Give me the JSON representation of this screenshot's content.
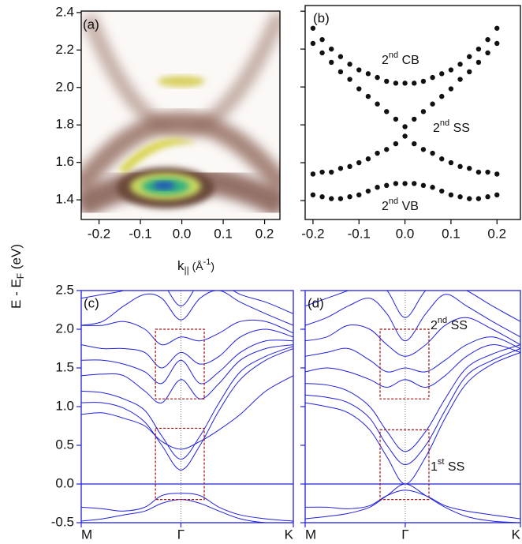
{
  "chart_data": [
    {
      "type": "image",
      "panel_label": "(a)",
      "frame_color": "#000000",
      "xlim": [
        -0.243,
        0.237
      ],
      "xticks": [
        -0.2,
        -0.1,
        {
          "value": 0,
          "label": "0.0"
        },
        0.1,
        0.2
      ],
      "ylim": [
        1.295,
        2.408
      ],
      "yticks": [
        1.4,
        1.6,
        1.8,
        {
          "value": 2,
          "label": "2.0"
        },
        2.2,
        2.4
      ]
    },
    {
      "type": "scatter",
      "panel_label": "(b)",
      "frame_color": "#000000",
      "ytick_labels": false,
      "xlim": [
        -0.217,
        0.251
      ],
      "xticks": [
        -0.2,
        -0.1,
        {
          "value": 0,
          "label": "0.0"
        },
        0.1,
        0.2
      ],
      "ylim": [
        1.3,
        2.43
      ],
      "yticks": [
        1.4,
        1.6,
        1.8,
        2,
        2.2,
        2.4
      ],
      "x": [
        -0.2,
        -0.18,
        -0.16,
        -0.14,
        -0.12,
        -0.1,
        -0.08,
        -0.06,
        -0.04,
        -0.02,
        0,
        0.02,
        0.04,
        0.06,
        0.08,
        0.1,
        0.12,
        0.14,
        0.16,
        0.18,
        0.2
      ],
      "series": [
        {
          "color": "#111111",
          "values": [
            2.31,
            2.25,
            2.2,
            2.16,
            2.12,
            2.09,
            2.07,
            2.05,
            2.03,
            2.02,
            2.02,
            2.02,
            2.03,
            2.05,
            2.07,
            2.09,
            2.12,
            2.16,
            2.2,
            2.25,
            2.31
          ]
        },
        {
          "color": "#111111",
          "values": [
            2.23,
            2.18,
            2.13,
            2.08,
            2.04,
            1.99,
            1.95,
            1.91,
            1.87,
            1.83,
            1.79,
            1.83,
            1.87,
            1.91,
            1.95,
            1.99,
            2.04,
            2.08,
            2.13,
            2.18,
            2.23
          ]
        },
        {
          "color": "#111111",
          "values": [
            1.54,
            1.55,
            1.55,
            1.57,
            1.58,
            1.6,
            1.62,
            1.65,
            1.67,
            1.7,
            1.74,
            1.7,
            1.67,
            1.65,
            1.62,
            1.6,
            1.58,
            1.57,
            1.55,
            1.55,
            1.54
          ]
        },
        {
          "color": "#111111",
          "values": [
            1.43,
            1.42,
            1.41,
            1.41,
            1.42,
            1.43,
            1.45,
            1.47,
            1.48,
            1.49,
            1.49,
            1.49,
            1.48,
            1.47,
            1.45,
            1.43,
            1.42,
            1.41,
            1.41,
            1.42,
            1.43
          ]
        }
      ],
      "annotations": [
        {
          "base": "2",
          "sup": "nd",
          "rest": " CB"
        },
        {
          "base": "2",
          "sup": "nd",
          "rest": " SS"
        },
        {
          "base": "2",
          "sup": "nd",
          "rest": " VB"
        }
      ]
    },
    {
      "type": "line",
      "panel_label": "(c)",
      "frame_color": "#2020dd",
      "x_grid": true,
      "reference_line": 0,
      "box_color": "#a01010",
      "xlim": [
        0,
        1
      ],
      "xticks": [
        {
          "value": 0,
          "label": "M"
        },
        {
          "value": 0.47,
          "label": "Γ"
        },
        {
          "value": 1,
          "label": "K"
        }
      ],
      "ylim": [
        -0.5,
        2.5
      ],
      "yticks": [
        -0.5,
        {
          "value": 0,
          "label": "0.0"
        },
        0.5,
        {
          "value": 1,
          "label": "1.0"
        },
        1.5,
        {
          "value": 2,
          "label": "2.0"
        },
        2.5
      ],
      "x": [
        0,
        0.1,
        0.2,
        0.3,
        0.38,
        0.47,
        0.56,
        0.65,
        0.75,
        0.87,
        1
      ],
      "series": [
        {
          "color": "#2020dd",
          "values": [
            -0.48,
            -0.45,
            -0.4,
            -0.35,
            -0.25,
            -0.2,
            -0.25,
            -0.35,
            -0.45,
            -0.5,
            -0.5
          ]
        },
        {
          "color": "#2020dd",
          "values": [
            -0.3,
            -0.32,
            -0.35,
            -0.3,
            -0.15,
            -0.12,
            -0.15,
            -0.3,
            -0.4,
            -0.45,
            -0.48
          ]
        },
        {
          "color": "#2020dd",
          "values": [
            1.05,
            1.05,
            0.98,
            0.8,
            0.5,
            0.18,
            0.5,
            0.95,
            1.35,
            1.6,
            1.75
          ]
        },
        {
          "color": "#2020dd",
          "values": [
            1.2,
            1.18,
            1.1,
            0.95,
            0.62,
            0.32,
            0.62,
            1.05,
            1.45,
            1.65,
            1.78
          ]
        },
        {
          "color": "#2020dd",
          "values": [
            1.4,
            1.42,
            1.4,
            1.2,
            1.05,
            1.35,
            1.1,
            1.3,
            1.6,
            1.75,
            1.8
          ]
        },
        {
          "color": "#2020dd",
          "values": [
            1.6,
            1.6,
            1.55,
            1.45,
            1.3,
            1.6,
            1.3,
            1.45,
            1.7,
            1.85,
            1.85
          ]
        },
        {
          "color": "#2020dd",
          "values": [
            1.8,
            1.75,
            1.75,
            1.7,
            1.5,
            1.7,
            1.55,
            1.65,
            1.9,
            2.0,
            1.9
          ]
        },
        {
          "color": "#2020dd",
          "values": [
            2.05,
            2.05,
            2.1,
            2.0,
            1.8,
            1.9,
            1.85,
            1.95,
            2.1,
            2.1,
            1.95
          ]
        },
        {
          "color": "#2020dd",
          "values": [
            2.05,
            2.1,
            2.3,
            2.45,
            2.4,
            2.12,
            2.4,
            2.5,
            2.35,
            2.2,
            2.05
          ]
        },
        {
          "color": "#2020dd",
          "values": [
            2.4,
            2.45,
            2.5,
            2.6,
            2.6,
            2.3,
            2.6,
            2.6,
            2.45,
            2.35,
            2.2
          ]
        },
        {
          "color": "#2020dd",
          "values": [
            0.9,
            0.92,
            0.85,
            0.75,
            0.55,
            0.45,
            0.55,
            0.7,
            0.9,
            1.2,
            1.4
          ]
        }
      ],
      "boxes": [
        {
          "x": [
            0.35,
            0.58
          ],
          "y": [
            1.1,
            2.0
          ]
        },
        {
          "x": [
            0.35,
            0.58
          ],
          "y": [
            -0.2,
            0.72
          ]
        }
      ]
    },
    {
      "type": "line",
      "panel_label": "(d)",
      "frame_color": "#2020dd",
      "x_grid": true,
      "reference_line": 0,
      "ytick_labels": false,
      "box_color": "#a01010",
      "xlim": [
        0,
        1
      ],
      "xticks": [
        {
          "value": 0,
          "label": "M"
        },
        {
          "value": 0.465,
          "label": "Γ"
        },
        {
          "value": 1,
          "label": "K"
        }
      ],
      "ylim": [
        -0.5,
        2.5
      ],
      "yticks": [
        -0.5,
        0,
        0.5,
        1,
        1.5,
        2,
        2.5
      ],
      "x": [
        0,
        0.1,
        0.2,
        0.3,
        0.38,
        0.465,
        0.56,
        0.65,
        0.75,
        0.87,
        1
      ],
      "series": [
        {
          "color": "#2020dd",
          "values": [
            -0.45,
            -0.42,
            -0.38,
            -0.3,
            -0.15,
            0.0,
            -0.15,
            -0.3,
            -0.42,
            -0.48,
            -0.5
          ]
        },
        {
          "color": "#2020dd",
          "values": [
            1.05,
            1.0,
            0.92,
            0.7,
            0.35,
            0.0,
            0.35,
            0.85,
            1.3,
            1.55,
            1.7
          ]
        },
        {
          "color": "#2020dd",
          "values": [
            1.15,
            1.12,
            1.05,
            0.85,
            0.5,
            0.25,
            0.5,
            0.95,
            1.4,
            1.6,
            1.75
          ]
        },
        {
          "color": "#2020dd",
          "values": [
            1.3,
            1.28,
            1.2,
            1.0,
            0.68,
            0.42,
            0.68,
            1.1,
            1.5,
            1.68,
            1.8
          ]
        },
        {
          "color": "#2020dd",
          "values": [
            1.45,
            1.5,
            1.45,
            1.35,
            1.25,
            1.35,
            1.25,
            1.4,
            1.65,
            1.8,
            1.7
          ]
        },
        {
          "color": "#2020dd",
          "values": [
            1.65,
            1.7,
            1.75,
            1.6,
            1.45,
            1.5,
            1.45,
            1.6,
            1.8,
            1.9,
            1.75
          ]
        },
        {
          "color": "#2020dd",
          "values": [
            1.85,
            1.9,
            2.05,
            2.0,
            1.8,
            1.65,
            1.8,
            2.05,
            2.15,
            2.0,
            1.8
          ]
        },
        {
          "color": "#2020dd",
          "values": [
            2.05,
            2.15,
            2.3,
            2.4,
            2.2,
            1.85,
            2.2,
            2.45,
            2.3,
            2.1,
            1.9
          ]
        },
        {
          "color": "#2020dd",
          "values": [
            2.3,
            2.4,
            2.5,
            2.6,
            2.5,
            2.15,
            2.5,
            2.6,
            2.5,
            2.3,
            2.1
          ]
        },
        {
          "color": "#2020dd",
          "values": [
            -0.3,
            -0.3,
            -0.32,
            -0.28,
            -0.15,
            -0.08,
            -0.15,
            -0.28,
            -0.35,
            -0.4,
            -0.45
          ]
        }
      ],
      "boxes": [
        {
          "x": [
            0.348,
            0.575
          ],
          "y": [
            1.1,
            2.0
          ]
        },
        {
          "x": [
            0.348,
            0.575
          ],
          "y": [
            -0.2,
            0.7
          ]
        }
      ],
      "annotations": [
        {
          "base": "2",
          "sup": "nd",
          "rest": " SS"
        },
        {
          "base": "1",
          "sup": "st",
          "rest": " SS"
        }
      ]
    }
  ],
  "x_label": {
    "main": "k",
    "sub": "||",
    "unit": " (Å",
    "sup": "-1",
    "end": ")"
  },
  "y_label": {
    "main": "E - E",
    "sub": "F",
    "unit": " (eV)"
  }
}
